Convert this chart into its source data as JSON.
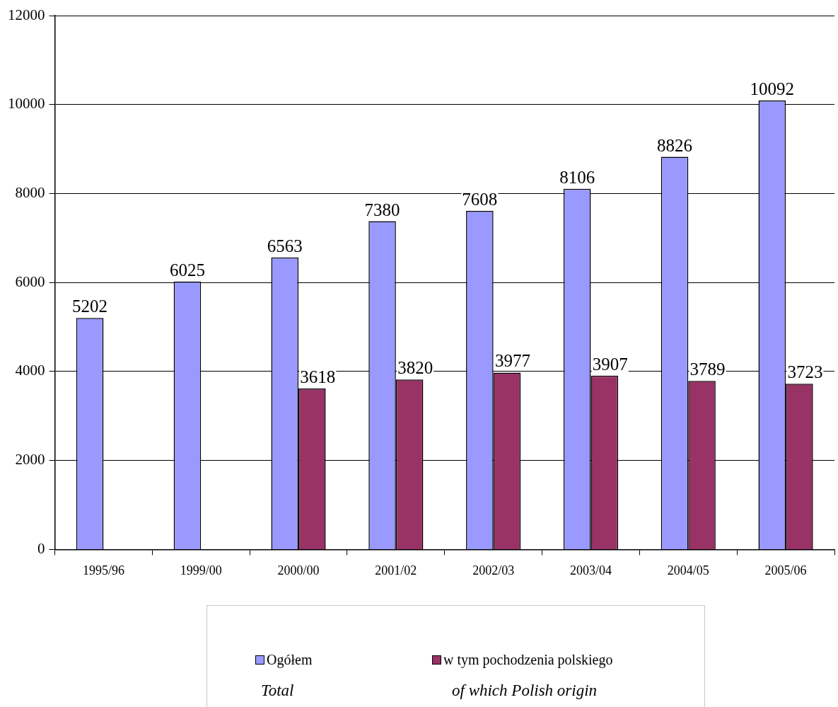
{
  "chart_data": {
    "type": "bar",
    "categories": [
      "1995/96",
      "1999/00",
      "2000/00",
      "2001/02",
      "2002/03",
      "2003/04",
      "2004/05",
      "2005/06"
    ],
    "series": [
      {
        "name": "Ogółem",
        "color": "#9999ff",
        "values": [
          5202,
          6025,
          6563,
          7380,
          7608,
          8106,
          8826,
          10092
        ]
      },
      {
        "name": "w tym pochodzenia polskiego",
        "color": "#993366",
        "values": [
          null,
          null,
          3618,
          3820,
          3977,
          3907,
          3789,
          3723
        ]
      }
    ],
    "ylim": [
      0,
      12000
    ],
    "yticks": [
      0,
      2000,
      4000,
      6000,
      8000,
      10000,
      12000
    ],
    "grid": "y",
    "legend": "bottom",
    "data_labels": true,
    "annotations": [
      "Total",
      "of which Polish origin"
    ]
  }
}
